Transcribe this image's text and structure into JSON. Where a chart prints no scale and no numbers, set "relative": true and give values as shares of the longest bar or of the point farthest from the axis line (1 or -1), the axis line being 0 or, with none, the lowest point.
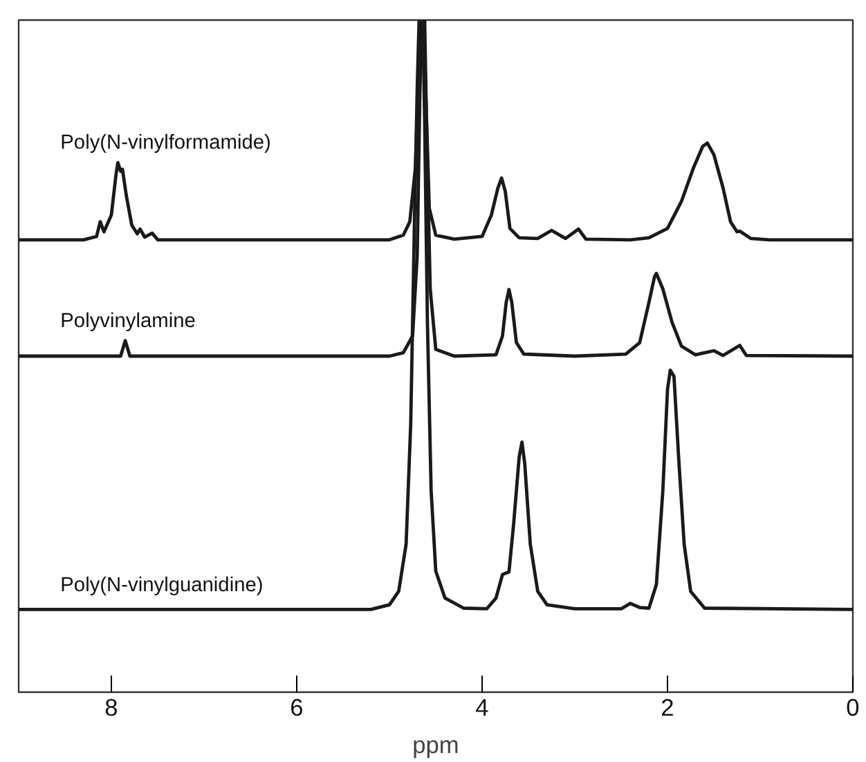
{
  "chart_data": {
    "type": "line",
    "xlabel": "ppm",
    "relative": true,
    "xlim": [
      9,
      0
    ],
    "xticks": [
      8,
      6,
      4,
      2,
      0
    ],
    "grid": false,
    "series": [
      {
        "name": "Poly(N-vinylformamide)",
        "color": "#1a1a1a",
        "x": [
          9,
          8.3,
          8.16,
          8.12,
          8.08,
          8.0,
          7.95,
          7.93,
          7.9,
          7.88,
          7.84,
          7.78,
          7.72,
          7.69,
          7.64,
          7.56,
          7.5,
          5.0,
          4.85,
          4.78,
          4.72,
          4.68,
          4.66,
          4.63,
          4.61,
          4.57,
          4.5,
          4.3,
          4.0,
          3.9,
          3.83,
          3.79,
          3.75,
          3.7,
          3.6,
          3.4,
          3.25,
          3.1,
          2.96,
          2.88,
          2.4,
          2.2,
          2.0,
          1.85,
          1.72,
          1.62,
          1.57,
          1.5,
          1.4,
          1.32,
          1.25,
          1.22,
          1.1,
          0.9,
          0
        ],
        "values": [
          0.673,
          0.673,
          0.678,
          0.7,
          0.685,
          0.71,
          0.77,
          0.788,
          0.775,
          0.778,
          0.74,
          0.695,
          0.682,
          0.689,
          0.677,
          0.683,
          0.673,
          0.673,
          0.68,
          0.7,
          0.78,
          0.95,
          1.0,
          1.0,
          0.9,
          0.72,
          0.68,
          0.674,
          0.678,
          0.71,
          0.75,
          0.765,
          0.745,
          0.69,
          0.676,
          0.675,
          0.687,
          0.675,
          0.689,
          0.674,
          0.673,
          0.676,
          0.69,
          0.73,
          0.78,
          0.812,
          0.817,
          0.8,
          0.75,
          0.7,
          0.685,
          0.686,
          0.675,
          0.673,
          0.673
        ]
      },
      {
        "name": "Polyvinylamine",
        "color": "#1a1a1a",
        "x": [
          9,
          7.9,
          7.85,
          7.8,
          5.0,
          4.85,
          4.75,
          4.7,
          4.67,
          4.65,
          4.62,
          4.6,
          4.56,
          4.5,
          4.3,
          3.85,
          3.78,
          3.74,
          3.71,
          3.68,
          3.63,
          3.55,
          3.0,
          2.45,
          2.3,
          2.2,
          2.14,
          2.12,
          2.05,
          1.95,
          1.85,
          1.7,
          1.5,
          1.4,
          1.22,
          1.15,
          0
        ],
        "values": [
          0.5,
          0.5,
          0.523,
          0.5,
          0.5,
          0.505,
          0.53,
          0.65,
          0.9,
          1.0,
          1.0,
          0.85,
          0.6,
          0.51,
          0.5,
          0.502,
          0.53,
          0.58,
          0.599,
          0.58,
          0.52,
          0.503,
          0.5,
          0.503,
          0.52,
          0.58,
          0.618,
          0.623,
          0.6,
          0.55,
          0.515,
          0.502,
          0.508,
          0.501,
          0.516,
          0.501,
          0.5
        ]
      },
      {
        "name": "Poly(N-vinylguanidine)",
        "color": "#1a1a1a",
        "x": [
          9,
          5.2,
          5.0,
          4.9,
          4.82,
          4.77,
          4.73,
          4.7,
          4.68,
          4.64,
          4.62,
          4.59,
          4.55,
          4.5,
          4.4,
          4.2,
          3.95,
          3.85,
          3.78,
          3.71,
          3.66,
          3.6,
          3.57,
          3.54,
          3.48,
          3.4,
          3.3,
          3.0,
          2.5,
          2.4,
          2.3,
          2.2,
          2.12,
          2.05,
          2.0,
          1.97,
          1.93,
          1.88,
          1.82,
          1.75,
          1.6,
          0
        ],
        "values": [
          0.123,
          0.123,
          0.13,
          0.15,
          0.22,
          0.4,
          0.7,
          0.9,
          1.0,
          1.0,
          0.85,
          0.55,
          0.3,
          0.18,
          0.14,
          0.125,
          0.124,
          0.14,
          0.175,
          0.179,
          0.25,
          0.35,
          0.372,
          0.34,
          0.22,
          0.15,
          0.13,
          0.124,
          0.124,
          0.132,
          0.126,
          0.125,
          0.16,
          0.3,
          0.45,
          0.479,
          0.47,
          0.35,
          0.22,
          0.15,
          0.125,
          0.123
        ]
      }
    ]
  }
}
